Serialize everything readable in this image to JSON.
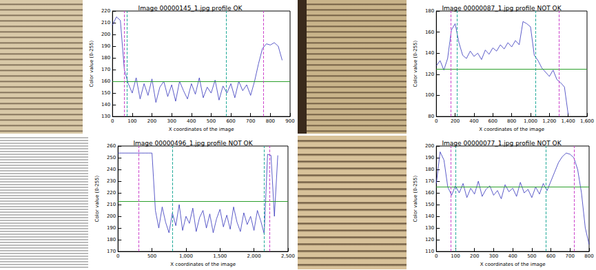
{
  "chart_data": [
    {
      "type": "line",
      "title": "Image 00000145_1.jpg profile OK",
      "xlabel": "X coordinates of the image",
      "ylabel": "Color value (0-255)",
      "x": [
        0,
        20,
        40,
        60,
        80,
        100,
        120,
        140,
        160,
        180,
        200,
        220,
        240,
        260,
        280,
        300,
        320,
        340,
        360,
        380,
        400,
        420,
        440,
        460,
        480,
        500,
        520,
        540,
        560,
        580,
        600,
        620,
        640,
        660,
        680,
        700,
        720,
        740,
        760,
        780,
        800,
        820,
        840,
        860
      ],
      "series": [
        {
          "color": "#3333bb",
          "values": [
            208,
            215,
            212,
            170,
            158,
            150,
            163,
            145,
            158,
            148,
            162,
            142,
            155,
            160,
            147,
            157,
            143,
            160,
            152,
            145,
            158,
            149,
            163,
            146,
            155,
            150,
            161,
            144,
            156,
            150,
            158,
            146,
            160,
            152,
            157,
            148,
            160,
            175,
            188,
            192,
            191,
            193,
            190,
            178
          ]
        }
      ],
      "xlim": [
        0,
        900
      ],
      "xticks": [
        0,
        100,
        200,
        300,
        400,
        500,
        600,
        700,
        800,
        900
      ],
      "ylim": [
        130,
        220
      ],
      "yticks": [
        130,
        140,
        150,
        160,
        170,
        180,
        190,
        200,
        210,
        220
      ],
      "grid": false,
      "threshold": 160,
      "outer_lines": [
        60,
        765
      ],
      "inner_lines": [
        75,
        575
      ]
    },
    {
      "type": "line",
      "title": "Image 00000087_1.jpg profile NOT OK",
      "xlabel": "X coordinates of the image",
      "ylabel": "Color value (0-255)",
      "x": [
        0,
        40,
        80,
        120,
        160,
        200,
        240,
        280,
        320,
        360,
        400,
        440,
        480,
        520,
        560,
        600,
        640,
        680,
        720,
        760,
        800,
        840,
        880,
        920,
        960,
        1000,
        1040,
        1080,
        1120,
        1160,
        1200,
        1240,
        1280,
        1320,
        1360,
        1400
      ],
      "series": [
        {
          "color": "#3333bb",
          "values": [
            128,
            133,
            124,
            135,
            162,
            168,
            150,
            138,
            135,
            142,
            137,
            140,
            134,
            143,
            139,
            145,
            142,
            148,
            144,
            150,
            146,
            152,
            148,
            170,
            168,
            165,
            138,
            133,
            126,
            122,
            118,
            124,
            115,
            112,
            108,
            82
          ]
        }
      ],
      "xlim": [
        0,
        1600
      ],
      "xticks": [
        0,
        200,
        400,
        600,
        800,
        1000,
        1200,
        1400,
        1600
      ],
      "ylim": [
        80,
        180
      ],
      "yticks": [
        80,
        100,
        120,
        140,
        160,
        180
      ],
      "grid": false,
      "threshold": 125,
      "outer_lines": [
        150,
        1300
      ],
      "inner_lines": [
        220,
        1050
      ]
    },
    {
      "type": "line",
      "title": "Image 00000496_1.jpg profile NOT OK",
      "xlabel": "X coordinates of the image",
      "ylabel": "Color value (0-255)",
      "x": [
        0,
        50,
        100,
        150,
        200,
        250,
        300,
        350,
        400,
        450,
        500,
        550,
        600,
        650,
        700,
        750,
        800,
        850,
        900,
        950,
        1000,
        1050,
        1100,
        1150,
        1200,
        1250,
        1300,
        1350,
        1400,
        1450,
        1500,
        1550,
        1600,
        1650,
        1700,
        1750,
        1800,
        1850,
        1900,
        1950,
        2000,
        2050,
        2100,
        2150,
        2200,
        2250,
        2300,
        2350
      ],
      "series": [
        {
          "color": "#3333bb",
          "values": [
            254,
            254,
            254,
            254,
            254,
            254,
            254,
            254,
            254,
            254,
            254,
            205,
            190,
            208,
            195,
            186,
            203,
            192,
            210,
            188,
            200,
            194,
            207,
            187,
            199,
            205,
            190,
            202,
            186,
            198,
            206,
            191,
            201,
            189,
            208,
            195,
            187,
            203,
            193,
            200,
            188,
            205,
            196,
            185,
            253,
            252,
            200,
            252
          ]
        }
      ],
      "xlim": [
        0,
        2500
      ],
      "xticks": [
        0,
        500,
        1000,
        1500,
        2000,
        2500
      ],
      "ylim": [
        170,
        260
      ],
      "yticks": [
        170,
        180,
        190,
        200,
        210,
        220,
        230,
        240,
        250,
        260
      ],
      "grid": false,
      "threshold": 213,
      "outer_lines": [
        300,
        2230
      ],
      "inner_lines": [
        800,
        2150
      ]
    },
    {
      "type": "line",
      "title": "Image 00000077_1.jpg profile NOT OK",
      "xlabel": "X coordinates of the image",
      "ylabel": "Color value (0-255)",
      "x": [
        0,
        20,
        40,
        60,
        80,
        100,
        120,
        140,
        160,
        180,
        200,
        220,
        240,
        260,
        280,
        300,
        320,
        340,
        360,
        380,
        400,
        420,
        440,
        460,
        480,
        500,
        520,
        540,
        560,
        580,
        600,
        620,
        640,
        660,
        680,
        700,
        720,
        740,
        760,
        780,
        800
      ],
      "series": [
        {
          "color": "#3333bb",
          "values": [
            168,
            195,
            188,
            165,
            158,
            166,
            160,
            168,
            156,
            164,
            159,
            170,
            157,
            163,
            166,
            158,
            162,
            155,
            167,
            161,
            164,
            157,
            169,
            160,
            163,
            156,
            165,
            159,
            168,
            162,
            170,
            178,
            186,
            191,
            194,
            193,
            190,
            180,
            160,
            130,
            116
          ]
        }
      ],
      "xlim": [
        0,
        800
      ],
      "xticks": [
        0,
        100,
        200,
        300,
        400,
        500,
        600,
        700,
        800
      ],
      "ylim": [
        110,
        200
      ],
      "yticks": [
        110,
        120,
        130,
        140,
        150,
        160,
        170,
        180,
        190,
        200
      ],
      "grid": false,
      "threshold": 165,
      "outer_lines": [
        75,
        720
      ],
      "inner_lines": [
        100,
        575
      ]
    }
  ]
}
